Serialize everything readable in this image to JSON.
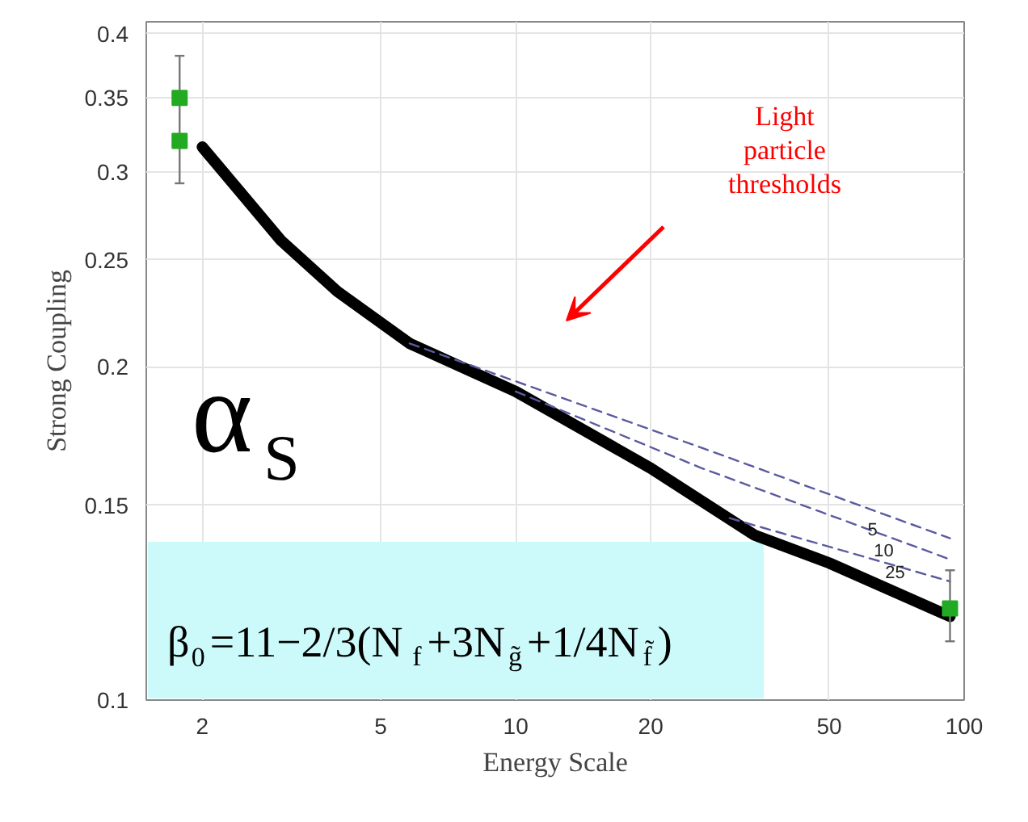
{
  "chart_data": {
    "type": "line",
    "xlabel": "Energy Scale",
    "ylabel": "Strong Coupling",
    "log": "xy",
    "xlim": [
      1.5,
      100
    ],
    "ylim": [
      0.1,
      0.41
    ],
    "xticks": [
      2,
      5,
      10,
      20,
      50,
      100
    ],
    "yticks": [
      0.1,
      0.15,
      0.2,
      0.25,
      0.3,
      0.35,
      0.4
    ],
    "grid": true,
    "series": [
      {
        "color": "#000000",
        "x": [
          2,
          3,
          4,
          5.8,
          10,
          20,
          34,
          50,
          93
        ],
        "values": [
          0.316,
          0.26,
          0.234,
          0.21,
          0.19,
          0.162,
          0.141,
          0.133,
          0.119
        ]
      },
      {
        "type": "line",
        "color": "#5a5aa0",
        "line_style": "dashed",
        "x": [
          5.8,
          26,
          93
        ],
        "values": [
          0.21,
          0.169,
          0.14
        ]
      },
      {
        "type": "line",
        "color": "#5a5aa0",
        "line_style": "dashed",
        "x": [
          10,
          26,
          93
        ],
        "values": [
          0.19,
          0.162,
          0.134
        ]
      },
      {
        "type": "line",
        "color": "#5a5aa0",
        "line_style": "dashed",
        "x": [
          30,
          93
        ],
        "values": [
          0.146,
          0.128
        ]
      },
      {
        "type": "scatter",
        "color": "#22aa22",
        "marker": "square",
        "x": [
          1.78,
          1.78,
          93
        ],
        "values": [
          0.35,
          0.32,
          0.121
        ],
        "errors": [
          [
            0.293,
            0.382
          ],
          null,
          [
            0.113,
            0.131
          ]
        ]
      }
    ],
    "annotations": [
      "Light\nparticle\nthresholds",
      "5",
      "10",
      "25",
      "α$_{S}$",
      "β$_{0}$=11−2/3(N$_{f}$+3N$_{g̃}$+1/4N$_{f̃}$)"
    ]
  }
}
